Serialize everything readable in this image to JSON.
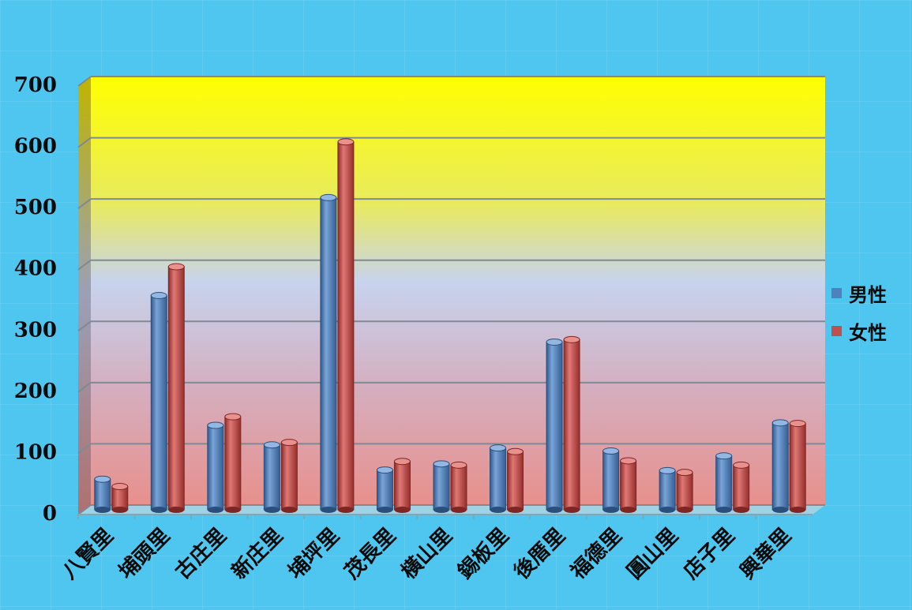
{
  "chart_data": {
    "type": "bar",
    "categories": [
      "八賢里",
      "埔頭里",
      "古庄里",
      "新庄里",
      "埔坪里",
      "茂長里",
      "橫山里",
      "錫板里",
      "後厝里",
      "福德里",
      "圓山里",
      "店子里",
      "興華里"
    ],
    "series": [
      {
        "name": "男性",
        "color": "#4f81bd",
        "values": [
          50,
          350,
          138,
          106,
          510,
          65,
          75,
          101,
          274,
          96,
          64,
          88,
          142
        ]
      },
      {
        "name": "女性",
        "color": "#c0504d",
        "values": [
          38,
          397,
          152,
          110,
          601,
          79,
          73,
          95,
          278,
          80,
          61,
          73,
          141
        ]
      }
    ],
    "ylim": [
      0,
      700
    ],
    "yticks": [
      "0",
      "100",
      "200",
      "300",
      "400",
      "500",
      "600",
      "700"
    ],
    "grid": true,
    "legend_position": "right",
    "colors": {
      "page_background": "#4fc6f0",
      "plot_top": "#ffff00",
      "plot_bottom": "#e8908c"
    }
  }
}
